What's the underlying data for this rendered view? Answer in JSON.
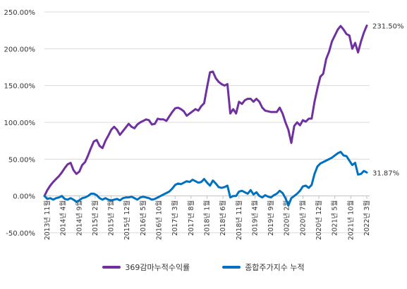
{
  "chart_data": {
    "type": "line",
    "title": "",
    "xlabel": "",
    "ylabel": "",
    "ylim": [
      -50,
      250
    ],
    "y_ticks": [
      "-50.00%",
      "0.00%",
      "50.00%",
      "100.00%",
      "150.00%",
      "200.00%",
      "250.00%"
    ],
    "y_tick_values": [
      -50,
      0,
      50,
      100,
      150,
      200,
      250
    ],
    "x_tick_labels": [
      "2013년 11월",
      "2014년 4월",
      "2014년 9월",
      "2015년 2월",
      "2015년 7월",
      "2015년 12월",
      "2016년 5월",
      "2016년 10월",
      "2017년 3월",
      "2017년 8월",
      "2018년 1월",
      "2018년 6월",
      "2018년 11월",
      "2019년 4월",
      "2019년 9월",
      "2020년 2월",
      "2020년 7월",
      "2020년 12월",
      "2021년 5월",
      "2021년 10월",
      "2022년 3월"
    ],
    "legend_position": "bottom",
    "grid": "horizontal",
    "series": [
      {
        "name": "369감마누적수익률",
        "color": "#7030A0",
        "end_label": "231.50%",
        "values": [
          0,
          8,
          14,
          19,
          23,
          27,
          32,
          38,
          43,
          45,
          35,
          30,
          33,
          42,
          46,
          55,
          65,
          74,
          76,
          68,
          65,
          75,
          82,
          90,
          94,
          90,
          83,
          88,
          93,
          98,
          94,
          92,
          97,
          100,
          102,
          104,
          103,
          97,
          98,
          105,
          104,
          104,
          102,
          108,
          114,
          119,
          120,
          118,
          115,
          109,
          112,
          115,
          118,
          116,
          122,
          126,
          148,
          168,
          169,
          160,
          155,
          152,
          150,
          152,
          112,
          118,
          112,
          128,
          125,
          130,
          132,
          132,
          128,
          132,
          128,
          120,
          116,
          115,
          114,
          114,
          114,
          120,
          112,
          100,
          90,
          72,
          95,
          100,
          96,
          103,
          101,
          105,
          105,
          128,
          146,
          162,
          166,
          186,
          196,
          210,
          218,
          226,
          231,
          226,
          220,
          218,
          200,
          208,
          195,
          210,
          222,
          231.5
        ]
      },
      {
        "name": "종합주가지수 누적",
        "color": "#0070C0",
        "end_label": "31.87%",
        "values": [
          0,
          -4,
          -3,
          -5,
          -3,
          -2,
          0,
          -4,
          -5,
          -3,
          -5,
          -8,
          -6,
          -3,
          -2,
          0,
          3,
          3,
          1,
          -3,
          -5,
          -3,
          -5,
          -6,
          -5,
          -4,
          -6,
          -3,
          -2,
          -2,
          -1,
          -3,
          -5,
          -2,
          -1,
          -2,
          -3,
          -5,
          -4,
          -2,
          0,
          2,
          4,
          6,
          10,
          15,
          17,
          16,
          18,
          20,
          19,
          22,
          20,
          18,
          19,
          23,
          18,
          14,
          21,
          17,
          12,
          11,
          12,
          14,
          -2,
          0,
          0,
          6,
          7,
          5,
          3,
          8,
          2,
          5,
          0,
          -2,
          1,
          -1,
          -2,
          1,
          3,
          7,
          4,
          -3,
          -13,
          -3,
          0,
          3,
          7,
          13,
          14,
          11,
          15,
          30,
          40,
          44,
          46,
          48,
          50,
          52,
          55,
          58,
          60,
          55,
          54,
          48,
          42,
          45,
          29,
          30,
          34,
          31.87
        ]
      }
    ]
  }
}
